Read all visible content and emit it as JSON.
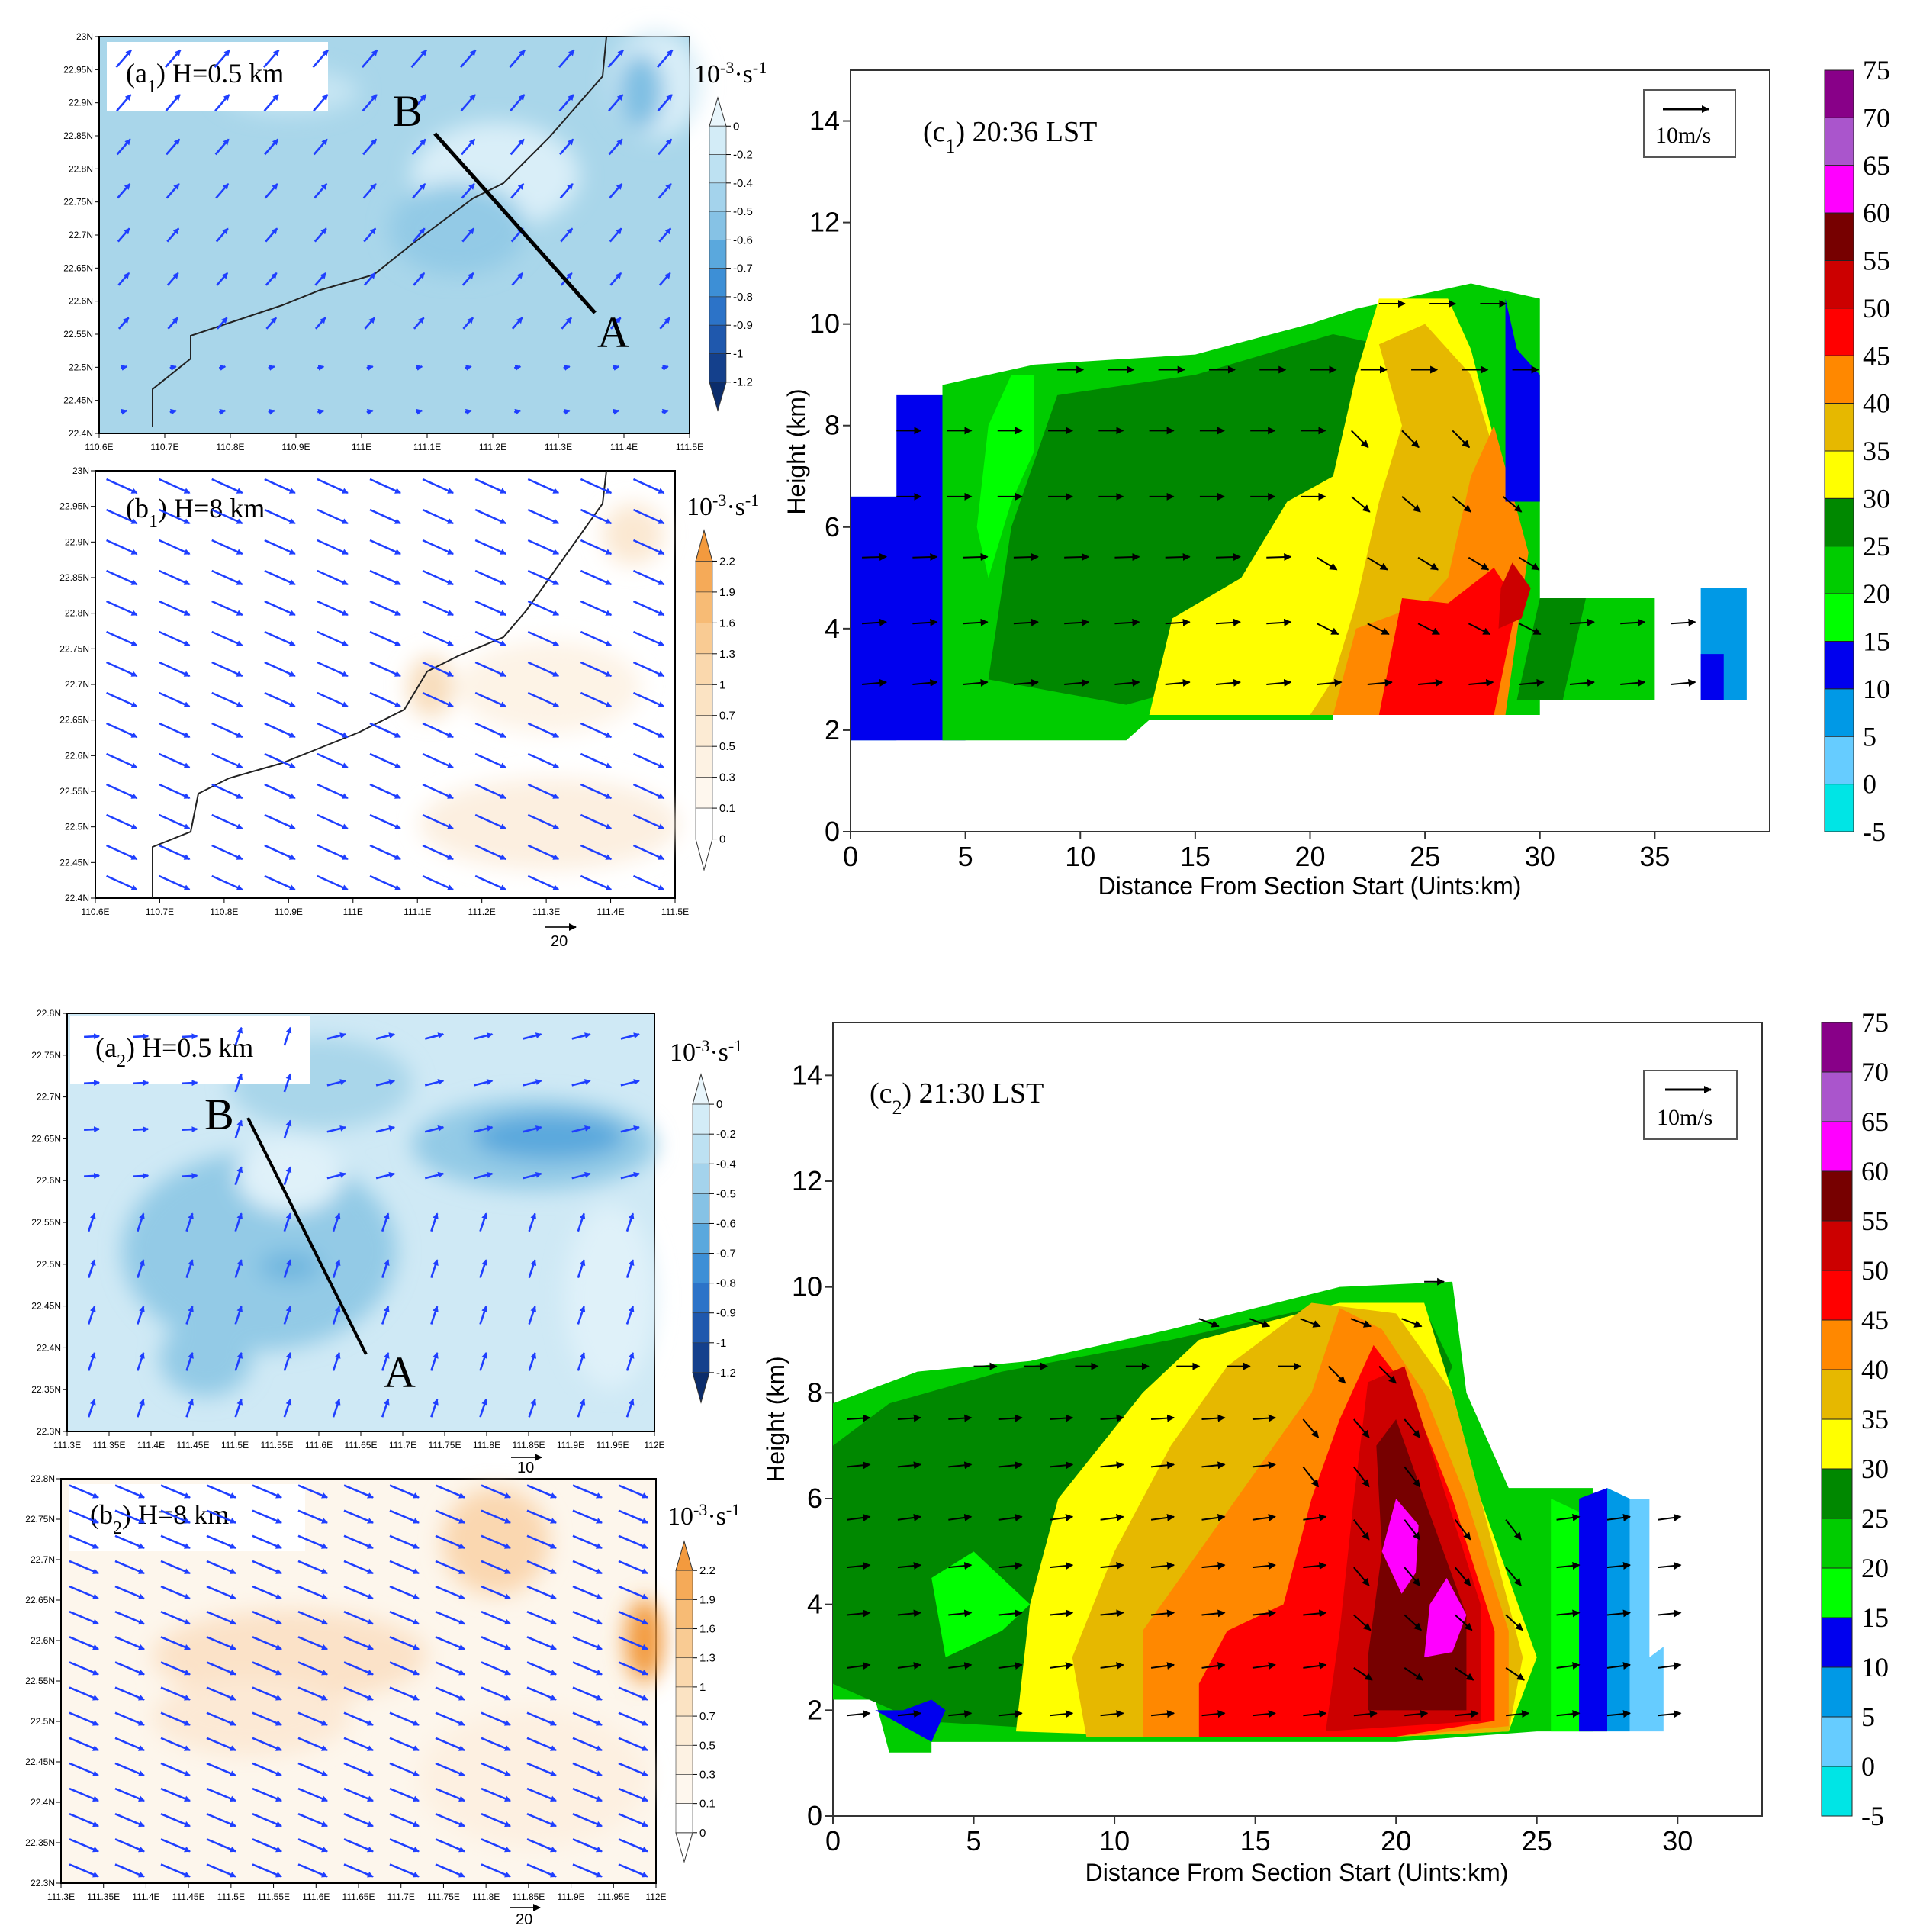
{
  "colors": {
    "divergence_fill": "#a9d6ea",
    "divergence_light": "#cfe9f5",
    "divergence_dark": "#6fb6df",
    "divergence_max": "#2f86d6",
    "vorticity_fill": "#fdf3e6",
    "vorticity_peak": "#f5a14a",
    "wind_vector": "#1f3fff",
    "section_line": "#000000",
    "coastline": "#222222"
  },
  "chart_data": [
    {
      "panel_id": "a1",
      "type": "heatmap",
      "title": "(a1) H=0.5 km",
      "title_base": "(a",
      "title_sub": "1",
      "title_tail": ") H=0.5 km",
      "x_ticks": [
        "110.6E",
        "110.7E",
        "110.8E",
        "110.9E",
        "111E",
        "111.1E",
        "111.2E",
        "111.3E",
        "111.4E",
        "111.5E"
      ],
      "y_ticks": [
        "23N",
        "22.95N",
        "22.9N",
        "22.85N",
        "22.8N",
        "22.75N",
        "22.7N",
        "22.65N",
        "22.6N",
        "22.55N",
        "22.5N",
        "22.45N",
        "22.4N"
      ],
      "xlim": [
        110.6,
        111.5
      ],
      "ylim": [
        22.4,
        23.0
      ],
      "unit": "10-3·s-1",
      "unit_base": "10",
      "unit_exp1": "-3",
      "unit_mid": "·s",
      "unit_exp2": "-1",
      "colorbar_ticks": [
        "0",
        "-0.2",
        "-0.4",
        "-0.5",
        "-0.6",
        "-0.7",
        "-0.8",
        "-0.9",
        "-1",
        "-1.2"
      ],
      "section_line": {
        "start_label": "B",
        "end_label": "A",
        "start": [
          111.08,
          22.86
        ],
        "end": [
          111.33,
          22.59
        ]
      },
      "vector_ref": ""
    },
    {
      "panel_id": "b1",
      "type": "heatmap",
      "title": "(b1) H=8 km",
      "title_base": "(b",
      "title_sub": "1",
      "title_tail": ") H=8 km",
      "x_ticks": [
        "110.6E",
        "110.7E",
        "110.8E",
        "110.9E",
        "111E",
        "111.1E",
        "111.2E",
        "111.3E",
        "111.4E",
        "111.5E"
      ],
      "y_ticks": [
        "23N",
        "22.95N",
        "22.9N",
        "22.85N",
        "22.8N",
        "22.75N",
        "22.7N",
        "22.65N",
        "22.6N",
        "22.55N",
        "22.5N",
        "22.45N",
        "22.4N"
      ],
      "xlim": [
        110.6,
        111.5
      ],
      "ylim": [
        22.4,
        23.0
      ],
      "unit": "10-3·s-1",
      "unit_base": "10",
      "unit_exp1": "-3",
      "unit_mid": "·s",
      "unit_exp2": "-1",
      "colorbar_ticks": [
        "2.2",
        "1.9",
        "1.6",
        "1.3",
        "1",
        "0.7",
        "0.5",
        "0.3",
        "0.1",
        "0"
      ],
      "vector_ref": "20"
    },
    {
      "panel_id": "c1",
      "type": "heatmap",
      "title": "(c1) 20:36 LST",
      "title_base": "(c",
      "title_sub": "1",
      "title_tail": ") 20:36 LST",
      "xlabel": "Distance From Section Start (Uints:km)",
      "ylabel": "Height (km)",
      "x_ticks": [
        "0",
        "5",
        "10",
        "15",
        "20",
        "25",
        "30",
        "35"
      ],
      "y_ticks": [
        "0",
        "2",
        "4",
        "6",
        "8",
        "10",
        "12",
        "14"
      ],
      "xlim": [
        0,
        40
      ],
      "ylim": [
        0,
        15
      ],
      "vector_ref": "10m/s",
      "colorbar_ticks": [
        "75",
        "70",
        "65",
        "60",
        "55",
        "50",
        "45",
        "40",
        "35",
        "30",
        "25",
        "20",
        "15",
        "10",
        "5",
        "0",
        "-5"
      ],
      "echo_top_km": [
        8.6,
        8.8,
        9.0,
        9.2,
        9.8,
        10.6,
        10.8,
        6.6
      ],
      "echo_top_x_km": [
        2,
        5,
        8,
        15,
        22,
        27,
        29,
        30
      ],
      "max_reflectivity_dbz": 55,
      "max_reflectivity_location": {
        "x_km": 29,
        "height_km": 4.5
      }
    },
    {
      "panel_id": "a2",
      "type": "heatmap",
      "title": "(a2) H=0.5 km",
      "title_base": "(a",
      "title_sub": "2",
      "title_tail": ") H=0.5 km",
      "x_ticks": [
        "111.3E",
        "111.35E",
        "111.4E",
        "111.45E",
        "111.5E",
        "111.55E",
        "111.6E",
        "111.65E",
        "111.7E",
        "111.75E",
        "111.8E",
        "111.85E",
        "111.9E",
        "111.95E",
        "112E"
      ],
      "y_ticks": [
        "22.8N",
        "22.75N",
        "22.7N",
        "22.65N",
        "22.6N",
        "22.55N",
        "22.5N",
        "22.45N",
        "22.4N",
        "22.35N",
        "22.3N"
      ],
      "xlim": [
        111.3,
        112.0
      ],
      "ylim": [
        22.3,
        22.8
      ],
      "unit": "10-3·s-1",
      "unit_base": "10",
      "unit_exp1": "-3",
      "unit_mid": "·s",
      "unit_exp2": "-1",
      "colorbar_ticks": [
        "0",
        "-0.2",
        "-0.4",
        "-0.5",
        "-0.6",
        "-0.7",
        "-0.8",
        "-0.9",
        "-1",
        "-1.2"
      ],
      "section_line": {
        "start_label": "B",
        "end_label": "A",
        "start": [
          111.51,
          22.66
        ],
        "end": [
          111.67,
          22.38
        ]
      },
      "vector_ref": "10"
    },
    {
      "panel_id": "b2",
      "type": "heatmap",
      "title": "(b2) H=8 km",
      "title_base": "(b",
      "title_sub": "2",
      "title_tail": ") H=8 km",
      "x_ticks": [
        "111.3E",
        "111.35E",
        "111.4E",
        "111.45E",
        "111.5E",
        "111.55E",
        "111.6E",
        "111.65E",
        "111.7E",
        "111.75E",
        "111.8E",
        "111.85E",
        "111.9E",
        "111.95E",
        "112E"
      ],
      "y_ticks": [
        "22.8N",
        "22.75N",
        "22.7N",
        "22.65N",
        "22.6N",
        "22.55N",
        "22.5N",
        "22.45N",
        "22.4N",
        "22.35N",
        "22.3N"
      ],
      "xlim": [
        111.3,
        112.0
      ],
      "ylim": [
        22.3,
        22.8
      ],
      "unit": "10-3·s-1",
      "unit_base": "10",
      "unit_exp1": "-3",
      "unit_mid": "·s",
      "unit_exp2": "-1",
      "colorbar_ticks": [
        "2.2",
        "1.9",
        "1.6",
        "1.3",
        "1",
        "0.7",
        "0.5",
        "0.3",
        "0.1",
        "0"
      ],
      "vector_ref": "20"
    },
    {
      "panel_id": "c2",
      "type": "heatmap",
      "title": "(c2) 21:30 LST",
      "title_base": "(c",
      "title_sub": "2",
      "title_tail": ") 21:30 LST",
      "xlabel": "Distance From Section Start (Uints:km)",
      "ylabel": "Height (km)",
      "x_ticks": [
        "0",
        "5",
        "10",
        "15",
        "20",
        "25",
        "30"
      ],
      "y_ticks": [
        "0",
        "2",
        "4",
        "6",
        "8",
        "10",
        "12",
        "14"
      ],
      "xlim": [
        0,
        33
      ],
      "ylim": [
        0,
        15
      ],
      "vector_ref": "10m/s",
      "colorbar_ticks": [
        "75",
        "70",
        "65",
        "60",
        "55",
        "50",
        "45",
        "40",
        "35",
        "30",
        "25",
        "20",
        "15",
        "10",
        "5",
        "0",
        "-5"
      ],
      "echo_top_km": [
        7.8,
        8.3,
        8.5,
        9.3,
        9.8,
        10.1,
        8.0,
        6.2
      ],
      "echo_top_x_km": [
        0,
        5,
        10,
        13,
        17,
        22,
        23,
        27
      ],
      "max_reflectivity_dbz": 65,
      "max_reflectivity_location": {
        "x_km": 21,
        "height_km": 4.5
      }
    }
  ],
  "dbz_colors": [
    "#00e5e5",
    "#66ccff",
    "#0099e6",
    "#0000ee",
    "#00ff00",
    "#00cc00",
    "#008800",
    "#ffff00",
    "#e6b800",
    "#ff8800",
    "#ff0000",
    "#cc0000",
    "#770000",
    "#ff00ff",
    "#aa55cc",
    "#880088"
  ]
}
